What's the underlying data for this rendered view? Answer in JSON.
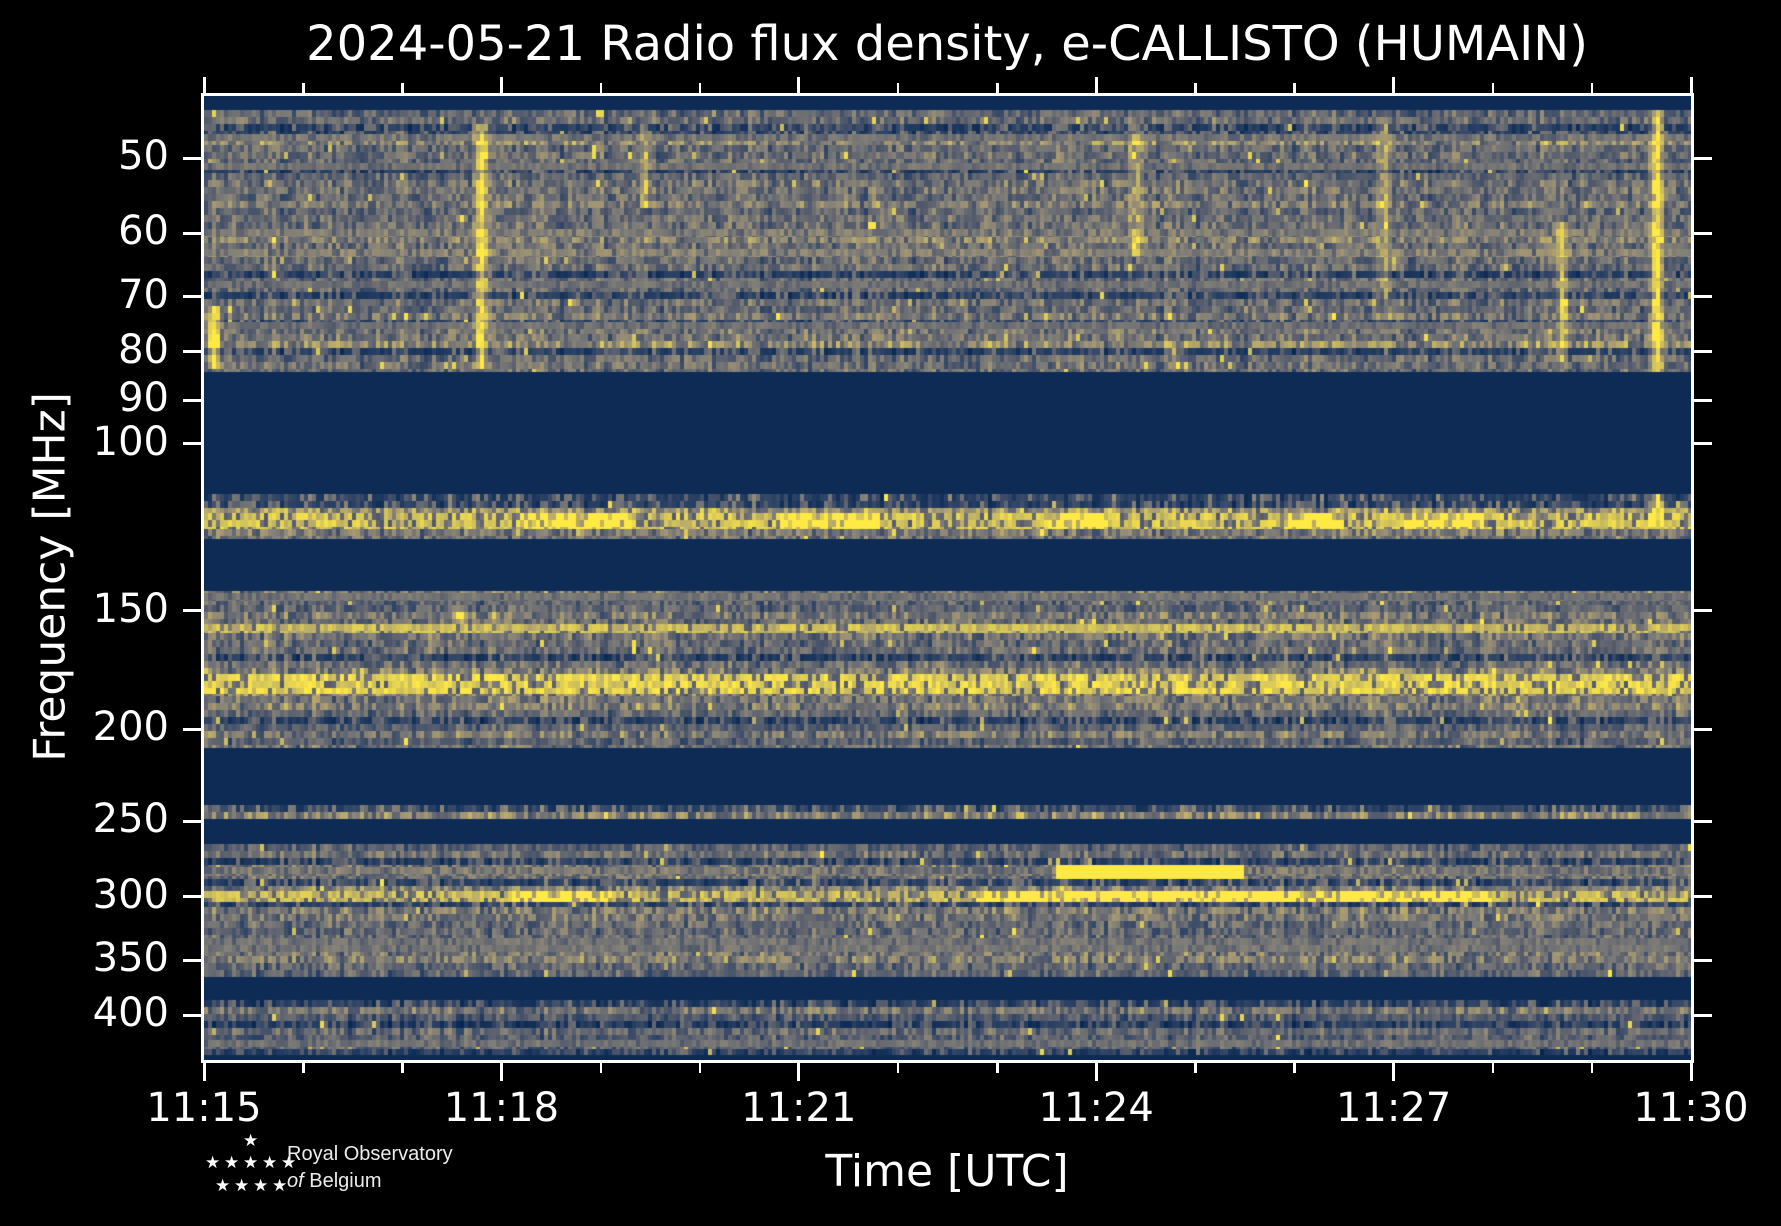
{
  "title": "2024-05-21 Radio flux density, e-CALLISTO (HUMAIN)",
  "x_axis": {
    "label": "Time [UTC]",
    "major_ticks": [
      "11:15",
      "11:18",
      "11:21",
      "11:24",
      "11:27",
      "11:30"
    ],
    "major_interval_min": 3,
    "minor_interval_min": 1,
    "span_min": 15
  },
  "y_axis": {
    "label": "Frequency [MHz]",
    "scale": "log",
    "ticks": [
      50,
      60,
      70,
      80,
      90,
      100,
      150,
      200,
      250,
      300,
      350,
      400
    ],
    "range_mhz": [
      43,
      446
    ]
  },
  "logo": {
    "line1": "Royal Observatory",
    "line2_italic": "of",
    "line2": "Belgium"
  },
  "colors": {
    "background": "#000000",
    "frame": "#ffffff",
    "text": "#ffffff",
    "gap_fill": "#0d2b55",
    "colormap": "cividis",
    "colormap_stops": [
      [
        0,
        34,
        78
      ],
      [
        42,
        65,
        101
      ],
      [
        87,
        93,
        109
      ],
      [
        123,
        122,
        119
      ],
      [
        165,
        152,
        114
      ],
      [
        210,
        195,
        91
      ],
      [
        255,
        233,
        69
      ]
    ]
  },
  "chart_data": {
    "type": "heatmap",
    "title": "2024-05-21 Radio flux density, e-CALLISTO (HUMAIN)",
    "xlabel": "Time [UTC]",
    "ylabel": "Frequency [MHz]",
    "time_range_utc": [
      "11:15",
      "11:30"
    ],
    "freq_range_mhz": [
      43,
      446
    ],
    "yscale": "log",
    "description": "Dynamic radio spectrum; noisy blue/grey background with yellow RFI lines; navy gaps are filtered bands",
    "bands": [
      {
        "f": [
          44.5,
          84
        ],
        "base": 0.4,
        "dark": 0.18,
        "light": 0.28
      },
      {
        "f": [
          113,
          126
        ],
        "base": 0.44,
        "dark": 0.15,
        "light": 0.3
      },
      {
        "f": [
          143,
          209
        ],
        "base": 0.38,
        "dark": 0.2,
        "light": 0.28
      },
      {
        "f": [
          240,
          248
        ],
        "base": 0.4,
        "dark": 0.1,
        "light": 0.3
      },
      {
        "f": [
          264,
          364
        ],
        "base": 0.38,
        "dark": 0.22,
        "light": 0.26
      },
      {
        "f": [
          386,
          441
        ],
        "base": 0.33,
        "dark": 0.25,
        "light": 0.22
      }
    ],
    "rfi_lines": [
      {
        "f": 47.5,
        "v": 0.55,
        "t": 7,
        "gap": 0.5
      },
      {
        "f": 51,
        "v": 0.5,
        "t": 7,
        "gap": 0.55
      },
      {
        "f": 60,
        "v": 0.6,
        "t": 8,
        "gap": 0.45
      },
      {
        "f": 63,
        "v": 0.62,
        "t": 8,
        "gap": 0.4
      },
      {
        "f": 68,
        "v": 0.5,
        "t": 7,
        "gap": 0.55
      },
      {
        "f": 75,
        "v": 0.48,
        "t": 7,
        "gap": 0.6
      },
      {
        "f": 120.5,
        "v": 0.9,
        "t": 16,
        "gap": 0.3
      },
      {
        "f": 145,
        "v": 0.5,
        "t": 8,
        "gap": 0.5
      },
      {
        "f": 156.5,
        "v": 0.85,
        "t": 9,
        "gap": 0.15
      },
      {
        "f": 179,
        "v": 0.95,
        "t": 20,
        "gap": 0.25
      },
      {
        "f": 282,
        "v": 0.6,
        "t": 9,
        "gap": 0.65
      },
      {
        "f": 300,
        "v": 0.85,
        "t": 11,
        "gap": 0.3
      },
      {
        "f": 337,
        "v": 0.52,
        "t": 14,
        "gap": 0.5
      },
      {
        "f": 428,
        "v": 0.5,
        "t": 7,
        "gap": 0.5
      }
    ],
    "events": [
      {
        "type": "vstreak",
        "t_min": 0.1,
        "f": [
          72,
          83
        ],
        "s": 0.6,
        "w": 6
      },
      {
        "type": "vstreak",
        "t_min": 2.8,
        "f": [
          46,
          83
        ],
        "s": 0.5,
        "w": 7
      },
      {
        "type": "vstreak",
        "t_min": 4.45,
        "f": [
          46,
          56
        ],
        "s": 0.3,
        "w": 5
      },
      {
        "type": "vstreak",
        "t_min": 9.4,
        "f": [
          46,
          63
        ],
        "s": 0.32,
        "w": 6
      },
      {
        "type": "vstreak",
        "t_min": 11.9,
        "f": [
          45,
          70
        ],
        "s": 0.26,
        "w": 6
      },
      {
        "type": "vstreak",
        "t_min": 13.7,
        "f": [
          58,
          82
        ],
        "s": 0.35,
        "w": 6
      },
      {
        "type": "vstreak",
        "t_min": 14.65,
        "f": [
          44,
          122
        ],
        "s": 0.55,
        "w": 6
      },
      {
        "type": "hsegment",
        "f": 281,
        "t_min": [
          8.6,
          10.5
        ],
        "s": 0.8,
        "h": 6
      },
      {
        "type": "hsegment",
        "f": 300,
        "t_min": [
          7.8,
          13.0
        ],
        "s": 0.3,
        "h": 6
      },
      {
        "type": "hsegment",
        "f": 300,
        "t_min": [
          3.1,
          4.1
        ],
        "s": 0.3,
        "h": 5
      },
      {
        "type": "hsegment",
        "f": 120.5,
        "t_min": [
          3.2,
          4.3
        ],
        "s": 0.3,
        "h": 8
      },
      {
        "type": "hsegment",
        "f": 120.5,
        "t_min": [
          5.8,
          6.8
        ],
        "s": 0.35,
        "h": 8
      },
      {
        "type": "hsegment",
        "f": 120.5,
        "t_min": [
          8.5,
          9.1
        ],
        "s": 0.3,
        "h": 8
      },
      {
        "type": "hsegment",
        "f": 120.5,
        "t_min": [
          10.9,
          11.5
        ],
        "s": 0.3,
        "h": 8
      },
      {
        "type": "hsegment",
        "f": 120.5,
        "t_min": [
          12.1,
          12.9
        ],
        "s": 0.3,
        "h": 8
      },
      {
        "type": "blob",
        "t_min": 2.6,
        "f": 152,
        "s": 0.55,
        "w": 10,
        "h": 7
      }
    ]
  }
}
